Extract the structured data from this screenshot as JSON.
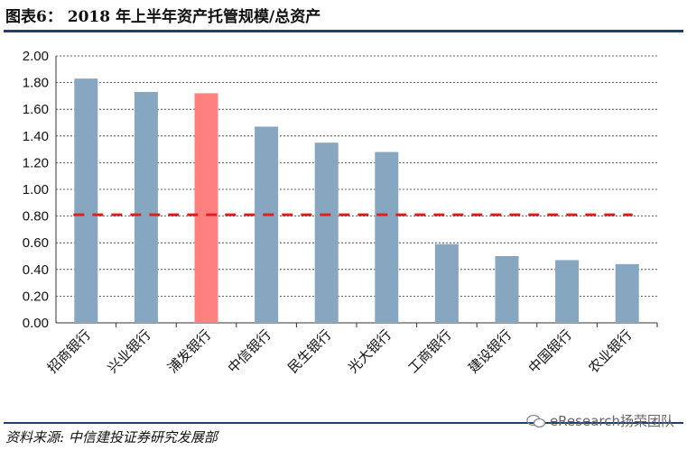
{
  "title": "图表6：   2018 年上半年资产托管规模/总资产",
  "source": "资料来源: 中信建投证券研究发展部",
  "watermark": "eResearch扬荣团队",
  "chart_data": {
    "type": "bar",
    "categories": [
      "招商银行",
      "兴业银行",
      "浦发银行",
      "中信银行",
      "民生银行",
      "光大银行",
      "工商银行",
      "建设银行",
      "中国银行",
      "农业银行"
    ],
    "values": [
      1.83,
      1.73,
      1.72,
      1.47,
      1.35,
      1.28,
      0.59,
      0.5,
      0.47,
      0.44
    ],
    "highlight_index": 2,
    "reference_line": 0.81,
    "ylim": [
      0,
      2.0
    ],
    "yticks": [
      "0.00",
      "0.20",
      "0.40",
      "0.60",
      "0.80",
      "1.00",
      "1.20",
      "1.40",
      "1.60",
      "1.80",
      "2.00"
    ],
    "xlabel": "",
    "ylabel": "",
    "grid": true,
    "colors": {
      "bar": "#87a6bf",
      "highlight": "#ff8080",
      "reference": "#e02020",
      "grid": "#333333"
    }
  }
}
